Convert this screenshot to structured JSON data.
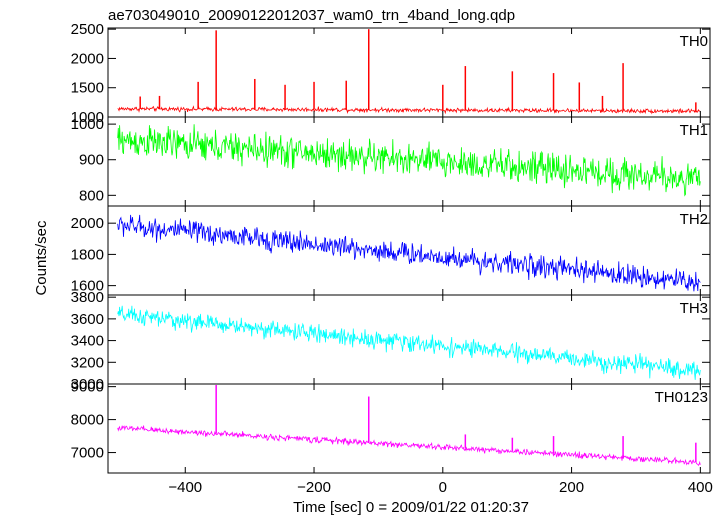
{
  "figure": {
    "title": "ae703049010_20090122012037_wam0_trn_4band_long.qdp",
    "xlabel": "Time [sec] 0 = 2009/01/22 01:20:37",
    "ylabel": "Counts/sec"
  },
  "chart_data": {
    "type": "line",
    "x_range": [
      -520,
      415
    ],
    "x_ticks": [
      -400,
      -200,
      0,
      200,
      400
    ],
    "x_tick_labels": [
      "−400",
      "−200",
      "0",
      "200",
      "400"
    ],
    "grid": false,
    "legend": "none",
    "data_start": -505,
    "data_end": 400,
    "panels": [
      {
        "name": "TH0",
        "color": "#ff0000",
        "ylim": [
          1000,
          2520
        ],
        "y_ticks": [
          1000,
          1500,
          2000,
          2500
        ],
        "y_tick_labels": [
          "1000",
          "1500",
          "2000",
          "2500"
        ],
        "baseline_start": 1140,
        "baseline_end": 1100,
        "noise": 35,
        "spikes": [
          {
            "x": -470,
            "y": 1350
          },
          {
            "x": -440,
            "y": 1360
          },
          {
            "x": -380,
            "y": 1600
          },
          {
            "x": -352,
            "y": 2480
          },
          {
            "x": -292,
            "y": 1650
          },
          {
            "x": -245,
            "y": 1550
          },
          {
            "x": -200,
            "y": 1600
          },
          {
            "x": -150,
            "y": 1620
          },
          {
            "x": -115,
            "y": 2500
          },
          {
            "x": 0,
            "y": 1550
          },
          {
            "x": 35,
            "y": 1870
          },
          {
            "x": 108,
            "y": 1780
          },
          {
            "x": 172,
            "y": 1750
          },
          {
            "x": 212,
            "y": 1590
          },
          {
            "x": 248,
            "y": 1360
          },
          {
            "x": 280,
            "y": 1920
          },
          {
            "x": 393,
            "y": 1250
          }
        ]
      },
      {
        "name": "TH1",
        "color": "#00ff00",
        "ylim": [
          770,
          1020
        ],
        "y_ticks": [
          800,
          900,
          1000
        ],
        "y_tick_labels": [
          "800",
          "900",
          "1000"
        ],
        "baseline_start": 955,
        "baseline_end": 845,
        "noise": 45,
        "spikes": []
      },
      {
        "name": "TH2",
        "color": "#0000ff",
        "ylim": [
          1540,
          2110
        ],
        "y_ticks": [
          1600,
          1800,
          2000
        ],
        "y_tick_labels": [
          "1600",
          "1800",
          "2000"
        ],
        "baseline_start": 1990,
        "baseline_end": 1620,
        "noise": 70,
        "spikes": []
      },
      {
        "name": "TH3",
        "color": "#00ffff",
        "ylim": [
          3000,
          3820
        ],
        "y_ticks": [
          3000,
          3200,
          3400,
          3600,
          3800
        ],
        "y_tick_labels": [
          "3000",
          "3200",
          "3400",
          "3600",
          "3800"
        ],
        "baseline_start": 3640,
        "baseline_end": 3120,
        "noise": 80,
        "spikes": []
      },
      {
        "name": "TH0123",
        "color": "#ff00ff",
        "ylim": [
          6380,
          9080
        ],
        "y_ticks": [
          7000,
          8000,
          9000
        ],
        "y_tick_labels": [
          "7000",
          "8000",
          "9000"
        ],
        "baseline_start": 7750,
        "baseline_end": 6700,
        "noise": 90,
        "spikes": [
          {
            "x": -352,
            "y": 9050
          },
          {
            "x": -115,
            "y": 8700
          },
          {
            "x": 35,
            "y": 7550
          },
          {
            "x": 108,
            "y": 7450
          },
          {
            "x": 172,
            "y": 7500
          },
          {
            "x": 280,
            "y": 7500
          },
          {
            "x": 393,
            "y": 7300
          }
        ]
      }
    ]
  }
}
